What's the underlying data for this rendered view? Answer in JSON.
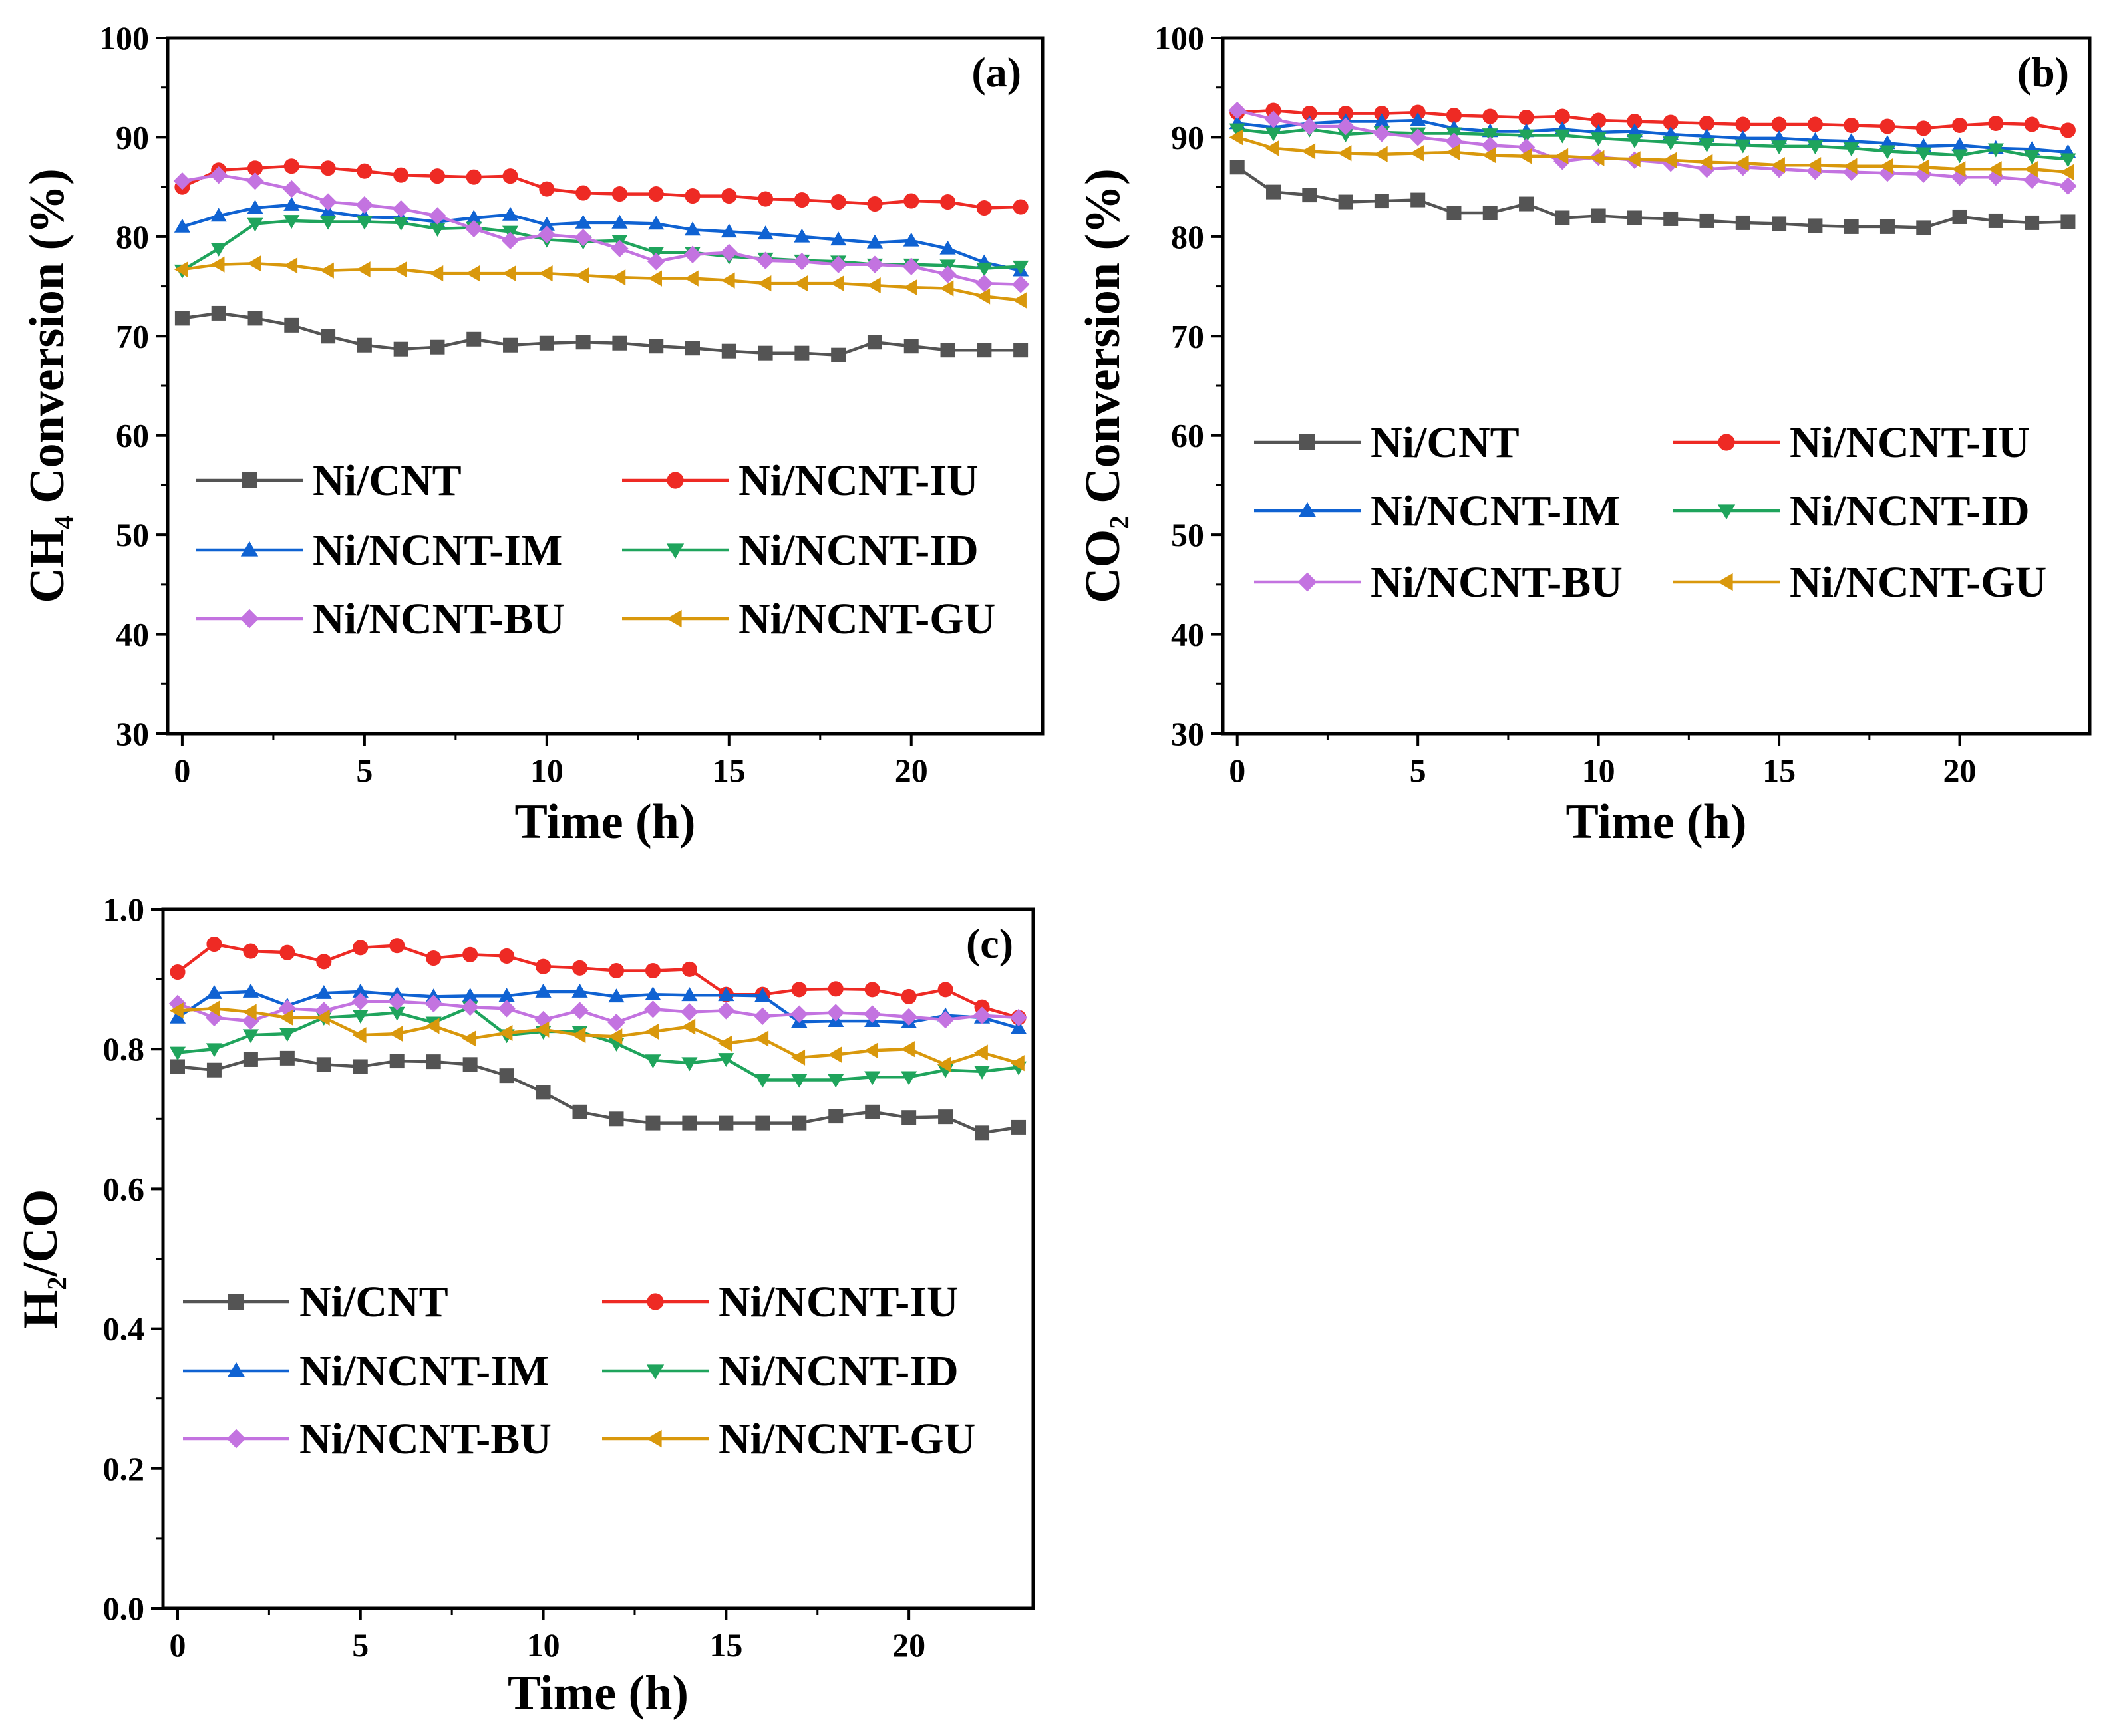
{
  "chart_data": [
    {
      "panel": "(a)",
      "type": "line",
      "xlabel": "Time (h)",
      "ylabel": "CH4 Conversion (%)",
      "ylabel_main": "CH",
      "ylabel_sub": "4",
      "ylabel_rest": " Conversion (%)",
      "xlim": [
        -0.4,
        23.6
      ],
      "ylim": [
        30,
        100
      ],
      "xticks": [
        0,
        5,
        10,
        15,
        20
      ],
      "yticks": [
        30,
        40,
        50,
        60,
        70,
        80,
        90,
        100
      ],
      "legend_position": "lower-left",
      "series": [
        {
          "name": "Ni/CNT",
          "color": "#545454",
          "marker": "square",
          "values": [
            71.8,
            72.3,
            71.8,
            71.1,
            70.0,
            69.1,
            68.7,
            68.9,
            69.7,
            69.1,
            69.3,
            69.4,
            69.3,
            69.0,
            68.8,
            68.5,
            68.3,
            68.3,
            68.1,
            69.4,
            69.0,
            68.6,
            68.6,
            68.6
          ]
        },
        {
          "name": "Ni/NCNT-IU",
          "color": "#ee2a24",
          "marker": "circle",
          "values": [
            85.0,
            86.7,
            86.9,
            87.1,
            86.9,
            86.6,
            86.2,
            86.1,
            86.0,
            86.1,
            84.8,
            84.4,
            84.3,
            84.3,
            84.1,
            84.1,
            83.8,
            83.7,
            83.5,
            83.3,
            83.6,
            83.5,
            82.9,
            83.0
          ]
        },
        {
          "name": "Ni/NCNT-IM",
          "color": "#0f62d2",
          "marker": "triangle-up",
          "values": [
            81.0,
            82.1,
            82.9,
            83.2,
            82.5,
            82.0,
            81.9,
            81.5,
            81.9,
            82.2,
            81.2,
            81.4,
            81.4,
            81.3,
            80.7,
            80.5,
            80.3,
            80.0,
            79.7,
            79.4,
            79.6,
            78.8,
            77.4,
            76.6
          ]
        },
        {
          "name": "Ni/NCNT-ID",
          "color": "#1fa45c",
          "marker": "triangle-down",
          "values": [
            76.6,
            78.8,
            81.3,
            81.6,
            81.5,
            81.5,
            81.4,
            80.8,
            80.9,
            80.5,
            79.7,
            79.5,
            79.6,
            78.4,
            78.4,
            78.0,
            77.8,
            77.6,
            77.5,
            77.2,
            77.2,
            77.1,
            76.8,
            77.0
          ]
        },
        {
          "name": "Ni/NCNT-BU",
          "color": "#c373e0",
          "marker": "diamond",
          "values": [
            85.6,
            86.2,
            85.6,
            84.8,
            83.5,
            83.2,
            82.8,
            82.1,
            80.8,
            79.6,
            80.2,
            79.9,
            78.8,
            77.5,
            78.2,
            78.4,
            77.6,
            77.5,
            77.2,
            77.2,
            77.0,
            76.2,
            75.3,
            75.2
          ]
        },
        {
          "name": "Ni/NCNT-GU",
          "color": "#d9980c",
          "marker": "triangle-left",
          "values": [
            76.7,
            77.2,
            77.3,
            77.1,
            76.6,
            76.7,
            76.7,
            76.3,
            76.3,
            76.3,
            76.3,
            76.1,
            75.9,
            75.8,
            75.8,
            75.6,
            75.3,
            75.3,
            75.3,
            75.1,
            74.9,
            74.8,
            74.0,
            73.6
          ]
        }
      ]
    },
    {
      "panel": "(b)",
      "type": "line",
      "xlabel": "Time (h)",
      "ylabel": "CO2 Conversion (%)",
      "ylabel_main": "CO",
      "ylabel_sub": "2",
      "ylabel_rest": " Conversion (%)",
      "xlim": [
        -0.4,
        23.6
      ],
      "ylim": [
        30,
        100
      ],
      "xticks": [
        0,
        5,
        10,
        15,
        20
      ],
      "yticks": [
        30,
        40,
        50,
        60,
        70,
        80,
        90,
        100
      ],
      "legend_position": "lower-left",
      "series": [
        {
          "name": "Ni/CNT",
          "color": "#545454",
          "marker": "square",
          "values": [
            87.0,
            84.5,
            84.2,
            83.5,
            83.6,
            83.7,
            82.4,
            82.4,
            83.3,
            81.9,
            82.1,
            81.9,
            81.8,
            81.6,
            81.4,
            81.3,
            81.1,
            81.0,
            81.0,
            80.9,
            82.0,
            81.6,
            81.4,
            81.5
          ]
        },
        {
          "name": "Ni/NCNT-IU",
          "color": "#ee2a24",
          "marker": "circle",
          "values": [
            92.5,
            92.7,
            92.4,
            92.4,
            92.4,
            92.5,
            92.2,
            92.1,
            92.0,
            92.1,
            91.7,
            91.6,
            91.5,
            91.4,
            91.3,
            91.3,
            91.3,
            91.2,
            91.1,
            90.9,
            91.2,
            91.4,
            91.3,
            90.7
          ]
        },
        {
          "name": "Ni/NCNT-IM",
          "color": "#0f62d2",
          "marker": "triangle-up",
          "values": [
            91.4,
            91.0,
            91.4,
            91.6,
            91.6,
            91.7,
            90.9,
            90.6,
            90.6,
            90.8,
            90.5,
            90.6,
            90.3,
            90.1,
            89.9,
            89.9,
            89.7,
            89.6,
            89.4,
            89.1,
            89.2,
            88.9,
            88.8,
            88.5
          ]
        },
        {
          "name": "Ni/NCNT-ID",
          "color": "#1fa45c",
          "marker": "triangle-down",
          "values": [
            90.8,
            90.4,
            90.8,
            90.3,
            90.5,
            90.4,
            90.4,
            90.3,
            90.2,
            90.2,
            89.9,
            89.7,
            89.5,
            89.3,
            89.2,
            89.1,
            89.1,
            88.9,
            88.6,
            88.4,
            88.2,
            88.8,
            88.1,
            87.8
          ]
        },
        {
          "name": "Ni/NCNT-BU",
          "color": "#c373e0",
          "marker": "diamond",
          "values": [
            92.7,
            91.8,
            91.1,
            91.1,
            90.4,
            90.0,
            89.6,
            89.2,
            89.0,
            87.6,
            88.0,
            87.7,
            87.4,
            86.8,
            87.0,
            86.8,
            86.6,
            86.5,
            86.4,
            86.3,
            86.0,
            86.0,
            85.7,
            85.1
          ]
        },
        {
          "name": "Ni/NCNT-GU",
          "color": "#d9980c",
          "marker": "triangle-left",
          "values": [
            90.0,
            88.9,
            88.6,
            88.4,
            88.3,
            88.4,
            88.5,
            88.2,
            88.1,
            88.1,
            87.9,
            87.8,
            87.7,
            87.5,
            87.4,
            87.2,
            87.2,
            87.1,
            87.1,
            87.0,
            86.8,
            86.8,
            86.8,
            86.5
          ]
        }
      ]
    },
    {
      "panel": "(c)",
      "type": "line",
      "xlabel": "Time (h)",
      "ylabel": "H2/CO",
      "ylabel_main": "H",
      "ylabel_sub": "2",
      "ylabel_rest": "/CO",
      "xlim": [
        -0.4,
        23.4
      ],
      "ylim": [
        0.0,
        1.0
      ],
      "xticks": [
        0,
        5,
        10,
        15,
        20
      ],
      "yticks": [
        0.0,
        0.2,
        0.4,
        0.6,
        0.8,
        1.0
      ],
      "ytick_labels": [
        "0.0",
        "0.2",
        "0.4",
        "0.6",
        "0.8",
        "1.0"
      ],
      "legend_position": "lower-left",
      "series": [
        {
          "name": "Ni/CNT",
          "color": "#545454",
          "marker": "square",
          "values": [
            0.775,
            0.77,
            0.785,
            0.787,
            0.778,
            0.775,
            0.783,
            0.782,
            0.778,
            0.762,
            0.738,
            0.71,
            0.7,
            0.694,
            0.694,
            0.694,
            0.694,
            0.694,
            0.704,
            0.71,
            0.702,
            0.703,
            0.68,
            0.688
          ]
        },
        {
          "name": "Ni/NCNT-IU",
          "color": "#ee2a24",
          "marker": "circle",
          "values": [
            0.91,
            0.95,
            0.94,
            0.938,
            0.925,
            0.945,
            0.948,
            0.93,
            0.935,
            0.933,
            0.918,
            0.916,
            0.912,
            0.912,
            0.914,
            0.878,
            0.878,
            0.885,
            0.886,
            0.885,
            0.875,
            0.885,
            0.86,
            0.845
          ]
        },
        {
          "name": "Ni/NCNT-IM",
          "color": "#0f62d2",
          "marker": "triangle-up",
          "values": [
            0.845,
            0.88,
            0.882,
            0.862,
            0.88,
            0.882,
            0.878,
            0.875,
            0.876,
            0.876,
            0.882,
            0.882,
            0.875,
            0.878,
            0.877,
            0.877,
            0.876,
            0.839,
            0.84,
            0.84,
            0.838,
            0.848,
            0.845,
            0.83
          ]
        },
        {
          "name": "Ni/NCNT-ID",
          "color": "#1fa45c",
          "marker": "triangle-down",
          "values": [
            0.795,
            0.8,
            0.82,
            0.822,
            0.845,
            0.848,
            0.852,
            0.838,
            0.86,
            0.82,
            0.825,
            0.825,
            0.808,
            0.784,
            0.78,
            0.786,
            0.756,
            0.756,
            0.756,
            0.76,
            0.76,
            0.77,
            0.768,
            0.774
          ]
        },
        {
          "name": "Ni/NCNT-BU",
          "color": "#c373e0",
          "marker": "diamond",
          "values": [
            0.865,
            0.845,
            0.84,
            0.858,
            0.855,
            0.868,
            0.868,
            0.865,
            0.86,
            0.858,
            0.842,
            0.855,
            0.838,
            0.857,
            0.853,
            0.855,
            0.847,
            0.85,
            0.852,
            0.85,
            0.846,
            0.842,
            0.848,
            0.845
          ]
        },
        {
          "name": "Ni/NCNT-GU",
          "color": "#d9980c",
          "marker": "triangle-left",
          "values": [
            0.855,
            0.858,
            0.853,
            0.845,
            0.845,
            0.82,
            0.822,
            0.833,
            0.815,
            0.823,
            0.828,
            0.82,
            0.818,
            0.825,
            0.832,
            0.808,
            0.815,
            0.788,
            0.792,
            0.798,
            0.8,
            0.778,
            0.795,
            0.78
          ]
        }
      ]
    }
  ]
}
